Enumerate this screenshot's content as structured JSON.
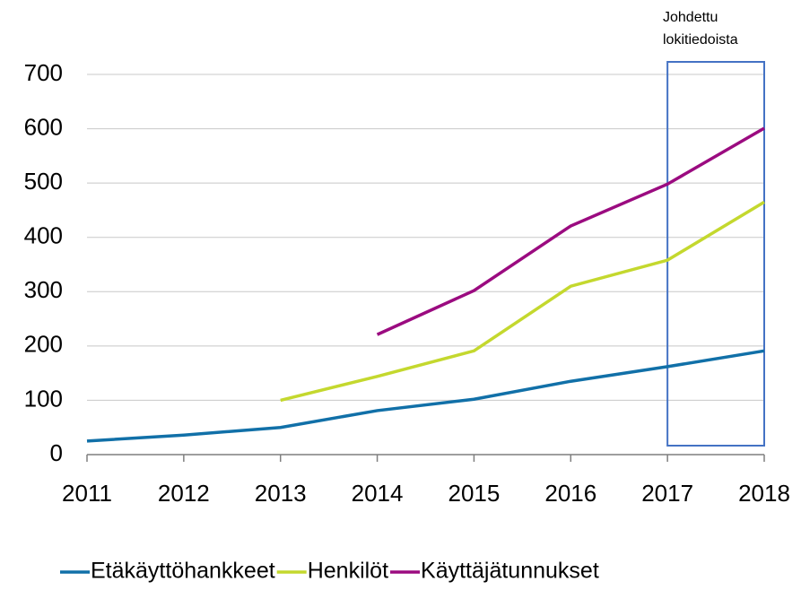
{
  "chart_data": {
    "type": "line",
    "annotation": [
      "Johdettu",
      "lokitiedoista"
    ],
    "x": [
      2011,
      2012,
      2013,
      2014,
      2015,
      2016,
      2017,
      2018
    ],
    "series": [
      {
        "name": "Etäkäyttöhankkeet",
        "color": "#1170a8",
        "values": [
          25,
          36,
          50,
          81,
          102,
          135,
          162,
          191
        ]
      },
      {
        "name": "Henkilöt",
        "color": "#c4d82e",
        "values": [
          null,
          null,
          100,
          144,
          191,
          310,
          358,
          465
        ]
      },
      {
        "name": "Käyttäjätunnukset",
        "color": "#9b0b80",
        "values": [
          null,
          null,
          null,
          221,
          302,
          421,
          498,
          601
        ]
      }
    ],
    "xlim": [
      2011,
      2018
    ],
    "xticks": [
      2011,
      2012,
      2013,
      2014,
      2015,
      2016,
      2017,
      2018
    ],
    "ylim": [
      0,
      700
    ],
    "yticks": [
      0,
      100,
      200,
      300,
      400,
      500,
      600,
      700
    ],
    "grid": true,
    "legend": "bottom"
  }
}
